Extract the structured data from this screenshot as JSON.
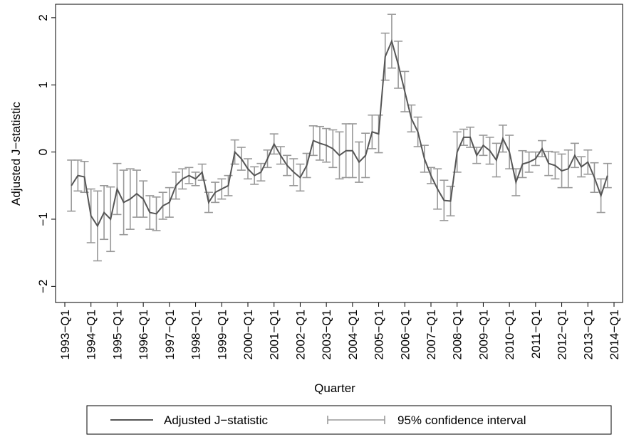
{
  "chart_data": {
    "type": "line",
    "x_label": "Quarter",
    "y_label": "Adjusted J−statistic",
    "categories": [
      "1993−Q1",
      null,
      null,
      null,
      "1994−Q1",
      null,
      null,
      null,
      "1995−Q1",
      null,
      null,
      null,
      "1996−Q1",
      null,
      null,
      null,
      "1997−Q1",
      null,
      null,
      null,
      "1998−Q1",
      null,
      null,
      null,
      "1999−Q1",
      null,
      null,
      null,
      "2000−Q1",
      null,
      null,
      null,
      "2001−Q1",
      null,
      null,
      null,
      "2002−Q1",
      null,
      null,
      null,
      "2003−Q1",
      null,
      null,
      null,
      "2004−Q1",
      null,
      null,
      null,
      "2005−Q1",
      null,
      null,
      null,
      "2006−Q1",
      null,
      null,
      null,
      "2007−Q1",
      null,
      null,
      null,
      "2008−Q1",
      null,
      null,
      null,
      "2009−Q1",
      null,
      null,
      null,
      "2010−Q1",
      null,
      null,
      null,
      "2011−Q1",
      null,
      null,
      null,
      "2012−Q1",
      null,
      null,
      null,
      "2013−Q1",
      null,
      null,
      null,
      "2014−Q1"
    ],
    "series": [
      {
        "name": "Adjusted J−statistic",
        "color": "#555555",
        "values": [
          null,
          -0.5,
          -0.35,
          -0.37,
          -0.95,
          -1.1,
          -0.9,
          -1.0,
          -0.55,
          -0.75,
          -0.7,
          -0.62,
          -0.7,
          -0.9,
          -0.92,
          -0.8,
          -0.75,
          -0.5,
          -0.4,
          -0.35,
          -0.4,
          -0.3,
          -0.75,
          -0.6,
          -0.55,
          -0.5,
          0.0,
          -0.1,
          -0.25,
          -0.35,
          -0.3,
          -0.1,
          0.12,
          -0.05,
          -0.2,
          -0.3,
          -0.38,
          -0.2,
          0.17,
          0.13,
          0.1,
          0.05,
          -0.05,
          0.02,
          0.02,
          -0.15,
          -0.05,
          0.3,
          0.27,
          1.42,
          1.65,
          1.3,
          0.9,
          0.5,
          0.3,
          -0.1,
          -0.35,
          -0.55,
          -0.72,
          -0.73,
          0.0,
          0.22,
          0.22,
          -0.05,
          0.1,
          0.02,
          -0.12,
          0.2,
          0.0,
          -0.45,
          -0.18,
          -0.15,
          -0.1,
          0.05,
          -0.17,
          -0.2,
          -0.28,
          -0.25,
          -0.05,
          -0.22,
          -0.15,
          -0.38,
          -0.65,
          -0.35,
          null
        ]
      },
      {
        "name": "95% confidence interval",
        "color": "#999999",
        "lower": [
          null,
          -0.88,
          -0.58,
          -0.6,
          -1.35,
          -1.62,
          -1.3,
          -1.48,
          -0.93,
          -1.23,
          -1.15,
          -0.97,
          -0.97,
          -1.15,
          -1.17,
          -1.0,
          -0.97,
          -0.7,
          -0.55,
          -0.47,
          -0.5,
          -0.42,
          -0.9,
          -0.75,
          -0.7,
          -0.65,
          -0.18,
          -0.27,
          -0.4,
          -0.48,
          -0.43,
          -0.23,
          -0.03,
          -0.18,
          -0.35,
          -0.5,
          -0.58,
          -0.38,
          -0.05,
          -0.12,
          -0.15,
          -0.23,
          -0.4,
          -0.38,
          -0.38,
          -0.45,
          -0.38,
          0.05,
          -0.01,
          1.07,
          1.25,
          0.95,
          0.6,
          0.3,
          0.08,
          -0.3,
          -0.47,
          -0.85,
          -1.02,
          -0.95,
          -0.3,
          0.1,
          0.07,
          -0.17,
          -0.05,
          -0.18,
          -0.37,
          0.0,
          -0.25,
          -0.65,
          -0.38,
          -0.3,
          -0.2,
          -0.07,
          -0.35,
          -0.4,
          -0.53,
          -0.53,
          -0.23,
          -0.37,
          -0.33,
          -0.6,
          -0.9,
          -0.53,
          null
        ],
        "upper": [
          null,
          -0.12,
          -0.12,
          -0.14,
          -0.55,
          -0.58,
          -0.5,
          -0.52,
          -0.17,
          -0.27,
          -0.25,
          -0.27,
          -0.43,
          -0.65,
          -0.67,
          -0.6,
          -0.53,
          -0.3,
          -0.25,
          -0.23,
          -0.3,
          -0.18,
          -0.6,
          -0.45,
          -0.4,
          -0.35,
          0.18,
          0.07,
          -0.1,
          -0.22,
          -0.17,
          0.03,
          0.27,
          0.08,
          -0.05,
          -0.1,
          -0.18,
          -0.02,
          0.39,
          0.38,
          0.35,
          0.33,
          0.3,
          0.42,
          0.42,
          0.15,
          0.28,
          0.55,
          0.55,
          1.77,
          2.05,
          1.65,
          1.2,
          0.7,
          0.52,
          0.1,
          -0.23,
          -0.25,
          -0.42,
          -0.51,
          0.3,
          0.34,
          0.37,
          0.07,
          0.25,
          0.22,
          0.13,
          0.4,
          0.25,
          -0.25,
          0.02,
          0.0,
          0.0,
          0.17,
          0.01,
          0.0,
          -0.03,
          0.03,
          0.13,
          -0.07,
          0.03,
          -0.16,
          -0.4,
          -0.17,
          null
        ]
      }
    ],
    "ylim": [
      -2.24,
      2.2
    ],
    "yticks": [
      {
        "value": -2,
        "label": "−2"
      },
      {
        "value": -1,
        "label": "−1"
      },
      0,
      1,
      2
    ]
  }
}
